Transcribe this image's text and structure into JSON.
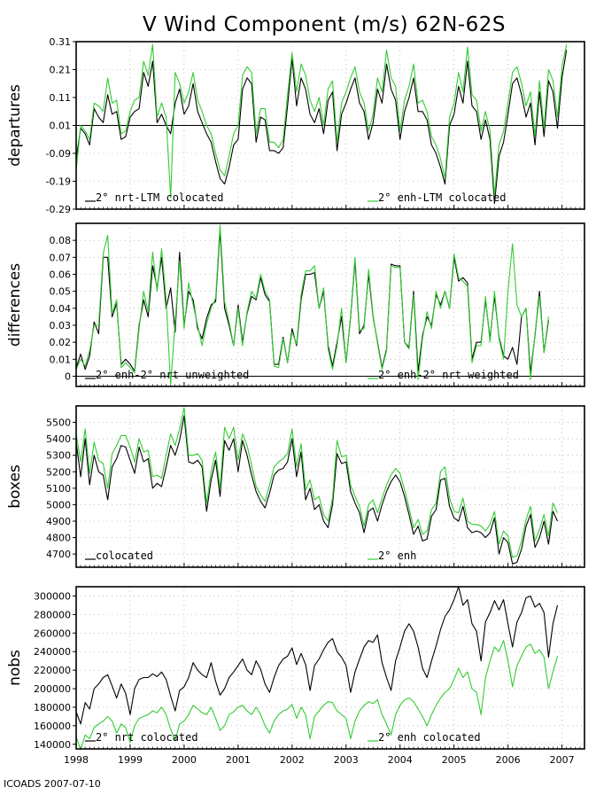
{
  "title": "V Wind Component (m/s) 62N-62S",
  "footer": "ICOADS 2007-07-10",
  "colors": {
    "black": "#000000",
    "green": "#33cc33",
    "grid": "#9a9a9a"
  },
  "chart_data": [
    {
      "type": "line",
      "ylabel": "departures",
      "ylim": [
        -0.29,
        0.31
      ],
      "yticks": [
        "0.31",
        "0.21",
        "0.11",
        "0.01",
        "-0.09",
        "-0.19",
        "-0.29"
      ],
      "zero_line": 0.01,
      "legend": [
        "2° nrt-LTM colocated",
        "2° enh-LTM colocated"
      ],
      "series": [
        {
          "name": "2° nrt-LTM colocated",
          "color": "#000000",
          "values": [
            -0.11,
            0.0,
            -0.02,
            -0.06,
            0.07,
            0.04,
            0.02,
            0.12,
            0.05,
            0.06,
            -0.04,
            -0.03,
            0.04,
            0.06,
            0.07,
            0.2,
            0.15,
            0.24,
            0.02,
            0.05,
            0.01,
            -0.02,
            0.09,
            0.14,
            0.05,
            0.08,
            0.16,
            0.06,
            0.02,
            -0.02,
            -0.05,
            -0.12,
            -0.18,
            -0.2,
            -0.14,
            -0.06,
            -0.04,
            0.14,
            0.18,
            0.16,
            -0.05,
            0.04,
            0.03,
            -0.08,
            -0.08,
            -0.09,
            -0.07,
            0.08,
            0.25,
            0.08,
            0.18,
            0.14,
            0.05,
            0.02,
            0.07,
            -0.02,
            0.1,
            0.13,
            -0.08,
            0.05,
            0.09,
            0.14,
            0.18,
            0.09,
            0.06,
            -0.04,
            0.02,
            0.14,
            0.09,
            0.23,
            0.14,
            0.1,
            -0.04,
            0.06,
            0.11,
            0.18,
            0.06,
            0.06,
            0.03,
            -0.06,
            -0.09,
            -0.14,
            -0.2,
            0.01,
            0.05,
            0.15,
            0.09,
            0.24,
            0.08,
            0.06,
            -0.04,
            0.03,
            -0.04,
            -0.27,
            -0.1,
            -0.05,
            0.05,
            0.16,
            0.18,
            0.12,
            0.04,
            0.09,
            -0.06,
            0.13,
            -0.03,
            0.17,
            0.13,
            0.0,
            0.18,
            0.28
          ]
        },
        {
          "name": "2° enh-LTM colocated",
          "color": "#33cc33",
          "values": [
            -0.15,
            0.01,
            -0.01,
            -0.04,
            0.09,
            0.08,
            0.06,
            0.18,
            0.09,
            0.1,
            -0.02,
            -0.01,
            0.06,
            0.1,
            0.11,
            0.24,
            0.19,
            0.3,
            0.04,
            0.09,
            0.04,
            -0.25,
            0.2,
            0.16,
            0.09,
            0.13,
            0.2,
            0.1,
            0.06,
            0.01,
            -0.02,
            -0.09,
            -0.15,
            -0.17,
            -0.1,
            -0.02,
            0.01,
            0.19,
            0.22,
            0.2,
            -0.02,
            0.07,
            0.07,
            -0.05,
            -0.05,
            -0.07,
            -0.04,
            0.12,
            0.27,
            0.13,
            0.23,
            0.19,
            0.1,
            0.06,
            0.11,
            0.01,
            0.14,
            0.17,
            -0.05,
            0.09,
            0.13,
            0.18,
            0.22,
            0.13,
            0.09,
            -0.01,
            0.05,
            0.18,
            0.13,
            0.28,
            0.18,
            0.15,
            -0.01,
            0.1,
            0.15,
            0.23,
            0.09,
            0.1,
            0.06,
            -0.03,
            -0.06,
            -0.11,
            -0.18,
            0.04,
            0.09,
            0.2,
            0.13,
            0.29,
            0.12,
            0.1,
            -0.01,
            0.06,
            -0.01,
            -0.24,
            -0.06,
            -0.01,
            0.09,
            0.2,
            0.22,
            0.16,
            0.08,
            0.13,
            -0.03,
            0.17,
            0.0,
            0.21,
            0.17,
            0.04,
            0.22,
            0.3
          ]
        }
      ]
    },
    {
      "type": "line",
      "ylabel": "differences",
      "ylim": [
        -0.006,
        0.09
      ],
      "yticks": [
        "0.08",
        "0.07",
        "0.06",
        "0.05",
        "0.04",
        "0.03",
        "0.02",
        "0.01",
        "0"
      ],
      "zero_line": 0,
      "legend": [
        "2° enh-2° nrt unweighted",
        "2° enh-2° nrt weighted"
      ],
      "series": [
        {
          "name": "2° enh-2° nrt unweighted",
          "color": "#000000",
          "values": [
            0.005,
            0.013,
            0.004,
            0.012,
            0.032,
            0.025,
            0.07,
            0.07,
            0.035,
            0.043,
            0.007,
            0.01,
            0.007,
            0.003,
            0.03,
            0.045,
            0.035,
            0.065,
            0.052,
            0.07,
            0.04,
            0.052,
            0.026,
            0.073,
            0.03,
            0.05,
            0.045,
            0.028,
            0.022,
            0.034,
            0.042,
            0.044,
            0.086,
            0.04,
            0.03,
            0.018,
            0.042,
            0.02,
            0.037,
            0.047,
            0.045,
            0.058,
            0.048,
            0.044,
            0.007,
            0.007,
            0.023,
            0.008,
            0.028,
            0.018,
            0.045,
            0.06,
            0.06,
            0.061,
            0.04,
            0.05,
            0.018,
            0.006,
            0.02,
            0.035,
            0.008,
            0.035,
            0.068,
            0.025,
            0.03,
            0.06,
            0.035,
            0.02,
            0.005,
            0.016,
            0.066,
            0.065,
            0.065,
            0.02,
            0.017,
            0.05,
            0.003,
            0.024,
            0.035,
            0.03,
            0.048,
            0.042,
            0.05,
            0.04,
            0.07,
            0.056,
            0.058,
            0.055,
            0.01,
            0.02,
            0.02,
            0.045,
            0.022,
            0.047,
            0.023,
            0.012,
            0.01,
            0.017,
            0.007,
            0.035,
            0.04,
            0.002,
            0.024,
            0.05,
            0.014,
            0.033
          ]
        },
        {
          "name": "2° enh-2° nrt weighted",
          "color": "#33cc33",
          "values": [
            0.004,
            0.01,
            0.006,
            0.015,
            0.03,
            0.03,
            0.072,
            0.083,
            0.037,
            0.045,
            0.005,
            0.008,
            0.005,
            0.002,
            0.028,
            0.05,
            0.038,
            0.073,
            0.05,
            0.075,
            0.045,
            -0.005,
            0.032,
            0.068,
            0.028,
            0.055,
            0.042,
            0.03,
            0.018,
            0.031,
            0.04,
            0.046,
            0.089,
            0.044,
            0.032,
            0.018,
            0.04,
            0.018,
            0.038,
            0.05,
            0.046,
            0.06,
            0.05,
            0.045,
            0.006,
            0.005,
            0.022,
            0.008,
            0.026,
            0.019,
            0.048,
            0.062,
            0.062,
            0.065,
            0.04,
            0.052,
            0.016,
            0.004,
            0.018,
            0.04,
            0.008,
            0.036,
            0.07,
            0.027,
            0.028,
            0.063,
            0.036,
            0.019,
            0.004,
            0.015,
            0.065,
            0.064,
            0.064,
            0.02,
            0.016,
            0.048,
            -0.002,
            0.022,
            0.038,
            0.028,
            0.05,
            0.04,
            0.05,
            0.04,
            0.072,
            0.058,
            0.056,
            0.053,
            0.008,
            0.018,
            0.018,
            0.047,
            0.02,
            0.05,
            0.022,
            0.01,
            0.05,
            0.078,
            0.042,
            0.035,
            0.04,
            -0.002,
            0.025,
            0.047,
            0.014,
            0.035
          ]
        }
      ]
    },
    {
      "type": "line",
      "ylabel": "boxes",
      "ylim": [
        4620,
        5600
      ],
      "yticks": [
        "5500",
        "5400",
        "5300",
        "5200",
        "5100",
        "5000",
        "4900",
        "4800",
        "4700"
      ],
      "legend": [
        "colocated",
        "2° enh"
      ],
      "series": [
        {
          "name": "colocated",
          "color": "#000000",
          "values": [
            5380,
            5170,
            5400,
            5120,
            5300,
            5200,
            5180,
            5030,
            5230,
            5280,
            5360,
            5350,
            5270,
            5190,
            5350,
            5260,
            5280,
            5100,
            5130,
            5110,
            5230,
            5360,
            5300,
            5390,
            5540,
            5260,
            5250,
            5270,
            5230,
            4960,
            5150,
            5270,
            5050,
            5390,
            5330,
            5400,
            5200,
            5390,
            5300,
            5180,
            5080,
            5020,
            4980,
            5070,
            5180,
            5210,
            5220,
            5260,
            5400,
            5170,
            5320,
            5030,
            5100,
            4970,
            5000,
            4900,
            4860,
            5000,
            5310,
            5250,
            5260,
            5080,
            5010,
            4950,
            4830,
            4960,
            4980,
            4900,
            5000,
            5080,
            5140,
            5180,
            5140,
            5050,
            4940,
            4820,
            4870,
            4780,
            4790,
            4930,
            4970,
            5150,
            5160,
            4990,
            4920,
            4900,
            4990,
            4860,
            4830,
            4840,
            4830,
            4800,
            4830,
            4920,
            4700,
            4800,
            4770,
            4640,
            4650,
            4730,
            4870,
            4940,
            4740,
            4800,
            4900,
            4760,
            4960,
            4900
          ]
        },
        {
          "name": "2° enh",
          "color": "#33cc33",
          "values": [
            5430,
            5260,
            5460,
            5190,
            5380,
            5270,
            5250,
            5100,
            5310,
            5360,
            5420,
            5420,
            5350,
            5260,
            5400,
            5320,
            5330,
            5170,
            5180,
            5160,
            5300,
            5430,
            5360,
            5460,
            5590,
            5300,
            5300,
            5310,
            5270,
            5010,
            5200,
            5320,
            5100,
            5470,
            5400,
            5470,
            5270,
            5430,
            5360,
            5240,
            5110,
            5060,
            5020,
            5120,
            5230,
            5260,
            5280,
            5310,
            5460,
            5230,
            5370,
            5090,
            5150,
            5030,
            5050,
            4940,
            4900,
            5040,
            5390,
            5290,
            5300,
            5120,
            5050,
            4990,
            4870,
            5000,
            5030,
            4950,
            5040,
            5120,
            5180,
            5220,
            5190,
            5090,
            4980,
            4860,
            4910,
            4820,
            4840,
            4970,
            5010,
            5200,
            5230,
            5040,
            4960,
            4950,
            5040,
            4900,
            4880,
            4880,
            4870,
            4840,
            4880,
            4960,
            4760,
            4840,
            4810,
            4680,
            4690,
            4780,
            4910,
            4990,
            4780,
            4850,
            4940,
            4810,
            5010,
            4950
          ]
        }
      ]
    },
    {
      "type": "line",
      "ylabel": "nobs",
      "ylim": [
        135000,
        310000
      ],
      "yticks": [
        "300000",
        "280000",
        "260000",
        "240000",
        "220000",
        "200000",
        "180000",
        "160000",
        "140000"
      ],
      "x_ticks": [
        "1998",
        "1999",
        "2000",
        "2001",
        "2002",
        "2003",
        "2004",
        "2005",
        "2006",
        "2007"
      ],
      "legend": [
        "2° nrt colocated",
        "2° enh colocated"
      ],
      "series": [
        {
          "name": "2° nrt colocated",
          "color": "#000000",
          "values": [
            175000,
            162000,
            185000,
            178000,
            200000,
            205000,
            212000,
            215000,
            203000,
            190000,
            205000,
            195000,
            172000,
            200000,
            210000,
            212000,
            212000,
            216000,
            213000,
            218000,
            210000,
            192000,
            176000,
            198000,
            202000,
            212000,
            228000,
            220000,
            215000,
            212000,
            228000,
            208000,
            193000,
            200000,
            212000,
            218000,
            225000,
            232000,
            220000,
            215000,
            230000,
            221000,
            205000,
            196000,
            212000,
            225000,
            232000,
            235000,
            244000,
            226000,
            238000,
            226000,
            198000,
            225000,
            232000,
            242000,
            250000,
            254000,
            240000,
            234000,
            225000,
            196000,
            218000,
            232000,
            245000,
            252000,
            250000,
            258000,
            228000,
            212000,
            198000,
            230000,
            245000,
            262000,
            270000,
            262000,
            245000,
            222000,
            212000,
            230000,
            246000,
            264000,
            278000,
            285000,
            296000,
            310000,
            290000,
            296000,
            270000,
            262000,
            230000,
            272000,
            282000,
            295000,
            285000,
            296000,
            270000,
            245000,
            272000,
            282000,
            298000,
            300000,
            288000,
            292000,
            282000,
            234000,
            270000,
            290000
          ]
        },
        {
          "name": "2° enh colocated",
          "color": "#33cc33",
          "values": [
            148000,
            134000,
            150000,
            146000,
            158000,
            162000,
            165000,
            170000,
            165000,
            152000,
            162000,
            158000,
            142000,
            160000,
            168000,
            170000,
            172000,
            176000,
            174000,
            180000,
            172000,
            156000,
            144000,
            162000,
            165000,
            172000,
            182000,
            178000,
            174000,
            172000,
            180000,
            168000,
            155000,
            160000,
            172000,
            175000,
            180000,
            182000,
            176000,
            172000,
            180000,
            172000,
            160000,
            152000,
            165000,
            172000,
            176000,
            178000,
            183000,
            168000,
            180000,
            172000,
            146000,
            170000,
            176000,
            182000,
            186000,
            185000,
            176000,
            172000,
            168000,
            146000,
            165000,
            176000,
            182000,
            186000,
            184000,
            188000,
            172000,
            162000,
            150000,
            172000,
            182000,
            188000,
            190000,
            186000,
            178000,
            170000,
            160000,
            172000,
            182000,
            190000,
            196000,
            200000,
            210000,
            222000,
            212000,
            218000,
            200000,
            196000,
            172000,
            212000,
            230000,
            245000,
            240000,
            252000,
            230000,
            202000,
            225000,
            235000,
            245000,
            248000,
            238000,
            242000,
            234000,
            200000,
            218000,
            235000
          ]
        }
      ]
    }
  ]
}
